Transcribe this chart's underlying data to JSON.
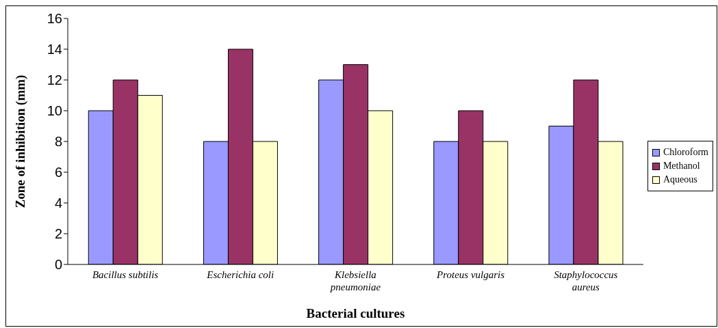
{
  "chart_data": {
    "type": "bar",
    "xlabel": "Bacterial cultures",
    "ylabel": "Zone of inhibition (mm)",
    "categories": [
      "Bacillus subtilis",
      "Escherichia coli",
      "Klebsiella pneumoniae",
      "Proteus vulgaris",
      "Staphylococcus aureus"
    ],
    "series": [
      {
        "name": "Chloroform",
        "color": "#9999ff",
        "values": [
          10,
          8,
          12,
          8,
          9
        ]
      },
      {
        "name": "Methanol",
        "color": "#993366",
        "values": [
          12,
          14,
          13,
          10,
          12
        ]
      },
      {
        "name": "Aqueous",
        "color": "#ffffcc",
        "values": [
          11,
          8,
          10,
          8,
          8
        ]
      }
    ],
    "ylim": [
      0,
      16
    ],
    "yticks": [
      0,
      2,
      4,
      6,
      8,
      10,
      12,
      14,
      16
    ],
    "grid": false,
    "legend": "right"
  }
}
